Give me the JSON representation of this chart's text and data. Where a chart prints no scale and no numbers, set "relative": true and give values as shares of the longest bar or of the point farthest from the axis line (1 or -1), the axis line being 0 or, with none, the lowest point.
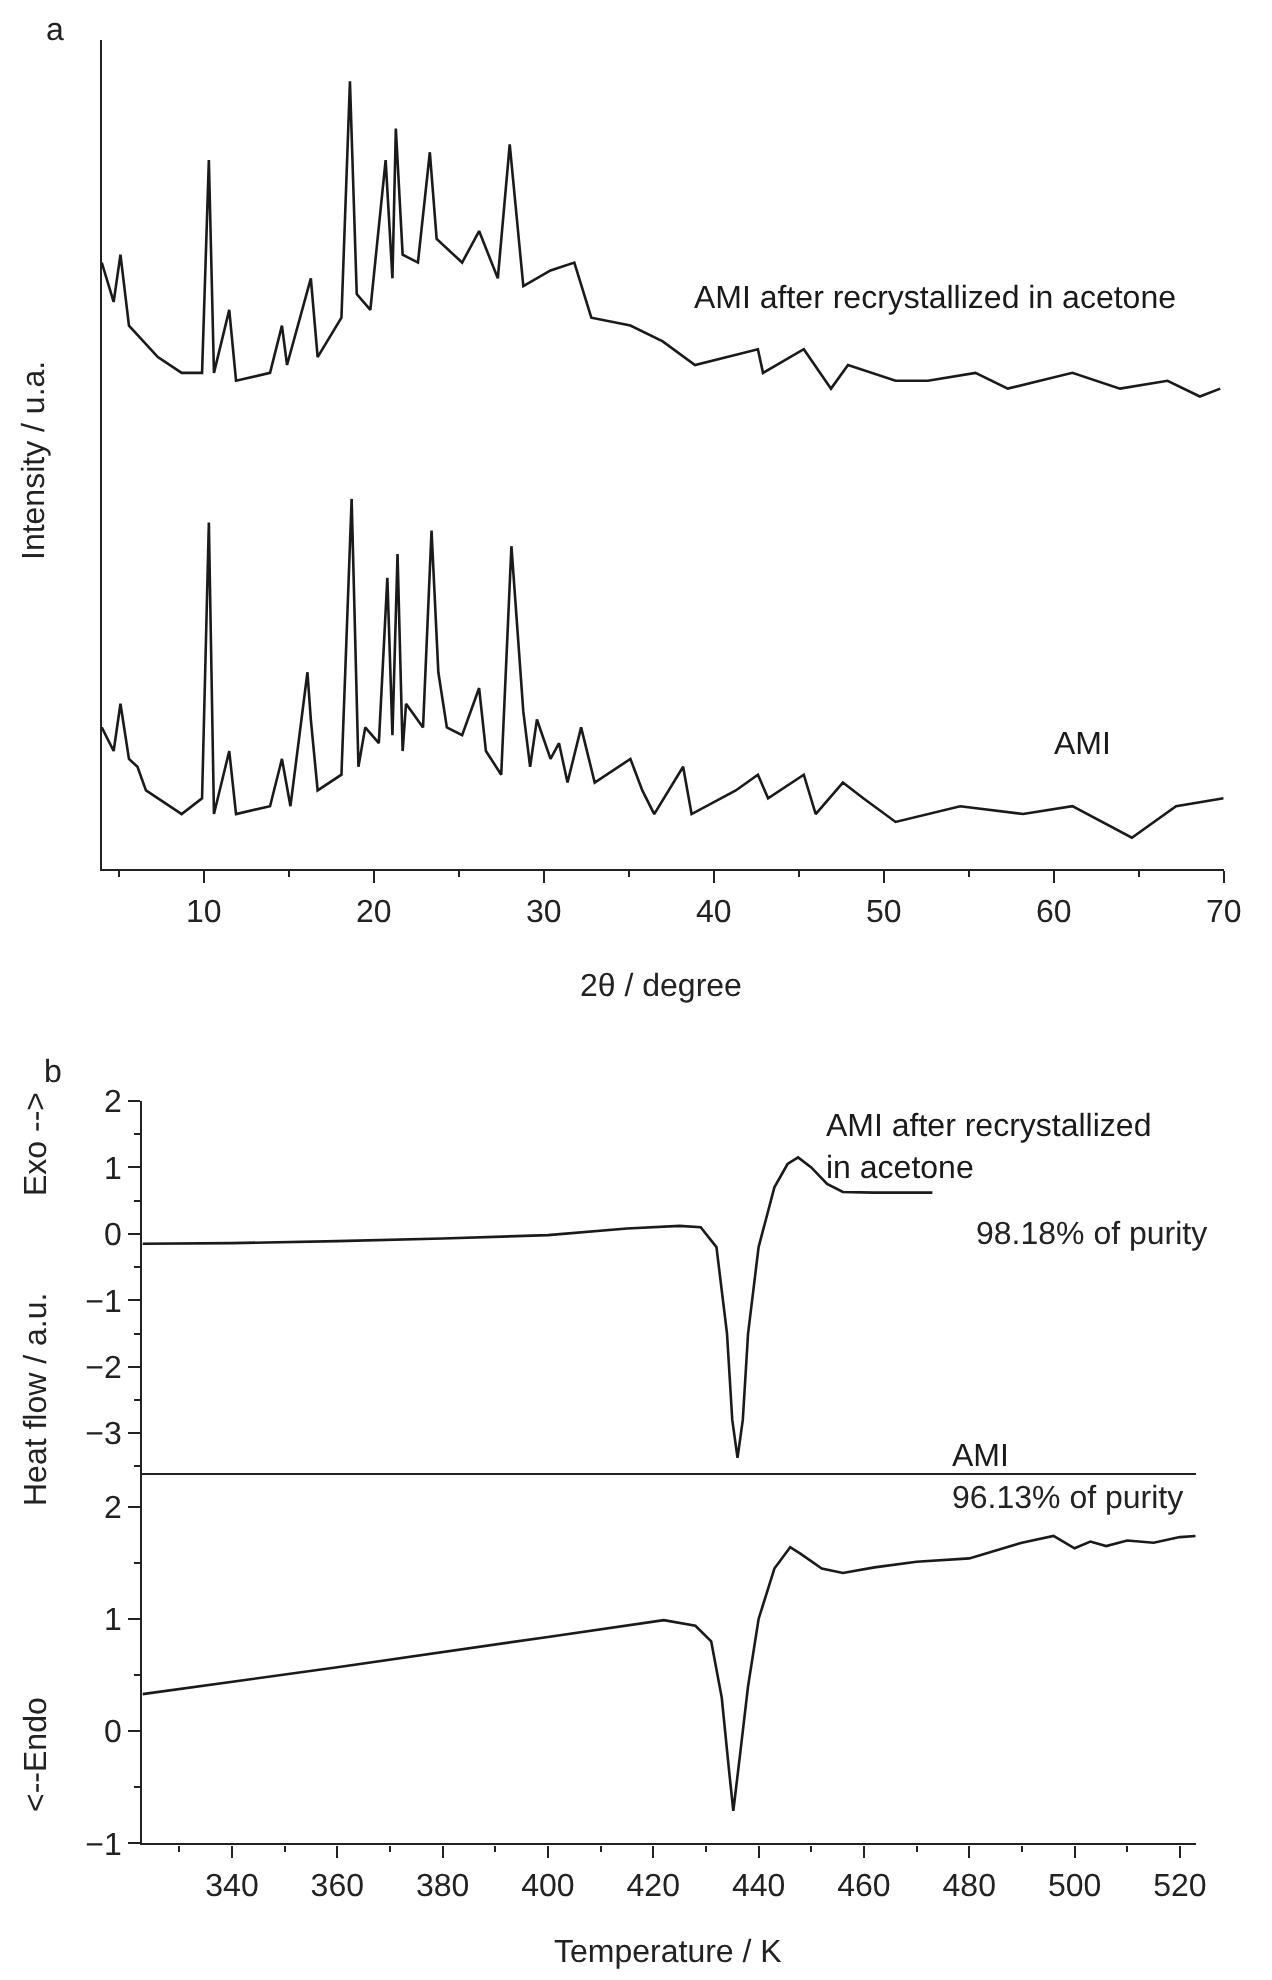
{
  "chart_data": [
    {
      "type": "line",
      "title": "a",
      "xlabel": "2θ / degree",
      "ylabel": "Intensity / u.a.",
      "relative": true,
      "xlim": [
        4,
        70
      ],
      "xticks": [
        10,
        20,
        30,
        40,
        50,
        60,
        70
      ],
      "series": [
        {
          "name": "AMI after recrystallized in acetone",
          "color": "#1a1a1a",
          "x": [
            4.0,
            4.7,
            5.1,
            5.6,
            7.3,
            8.7,
            9.9,
            10.3,
            10.6,
            11.5,
            11.9,
            13.9,
            14.6,
            14.9,
            16.3,
            16.7,
            18.1,
            18.6,
            19.0,
            19.8,
            20.7,
            21.1,
            21.3,
            21.7,
            22.6,
            23.3,
            23.7,
            25.2,
            26.2,
            27.3,
            28.0,
            28.8,
            30.4,
            31.8,
            32.8,
            35.1,
            37.0,
            38.9,
            42.6,
            42.9,
            45.3,
            46.9,
            47.9,
            50.7,
            52.6,
            55.4,
            57.3,
            61.1,
            63.9,
            66.7,
            68.6,
            69.8
          ],
          "values": [
            0.77,
            0.72,
            0.78,
            0.69,
            0.65,
            0.63,
            0.63,
            0.9,
            0.63,
            0.71,
            0.62,
            0.63,
            0.69,
            0.64,
            0.75,
            0.65,
            0.7,
            1.0,
            0.73,
            0.71,
            0.9,
            0.75,
            0.94,
            0.78,
            0.77,
            0.91,
            0.8,
            0.77,
            0.81,
            0.75,
            0.92,
            0.74,
            0.76,
            0.77,
            0.7,
            0.69,
            0.67,
            0.64,
            0.66,
            0.63,
            0.66,
            0.61,
            0.64,
            0.62,
            0.62,
            0.63,
            0.61,
            0.63,
            0.61,
            0.62,
            0.6,
            0.61
          ]
        },
        {
          "name": "AMI",
          "color": "#1a1a1a",
          "x": [
            4.0,
            4.7,
            5.1,
            5.6,
            6.1,
            6.6,
            8.7,
            9.9,
            10.3,
            10.6,
            11.5,
            11.9,
            13.9,
            14.6,
            15.1,
            16.1,
            16.3,
            16.7,
            18.1,
            18.7,
            19.1,
            19.5,
            20.3,
            20.8,
            21.1,
            21.4,
            21.7,
            21.9,
            22.9,
            23.4,
            23.8,
            24.3,
            25.2,
            26.2,
            26.6,
            27.5,
            28.1,
            28.8,
            29.2,
            29.6,
            30.4,
            30.9,
            31.4,
            32.2,
            33.0,
            35.1,
            35.8,
            36.5,
            38.2,
            38.7,
            41.3,
            42.6,
            43.2,
            45.3,
            46.0,
            47.6,
            48.8,
            50.7,
            54.5,
            58.2,
            61.1,
            64.6,
            67.2,
            70.0
          ],
          "values": [
            0.18,
            0.15,
            0.21,
            0.14,
            0.13,
            0.1,
            0.07,
            0.09,
            0.44,
            0.07,
            0.15,
            0.07,
            0.08,
            0.14,
            0.08,
            0.25,
            0.19,
            0.1,
            0.12,
            0.47,
            0.13,
            0.18,
            0.16,
            0.37,
            0.17,
            0.4,
            0.15,
            0.21,
            0.18,
            0.43,
            0.25,
            0.18,
            0.17,
            0.23,
            0.15,
            0.12,
            0.41,
            0.2,
            0.13,
            0.19,
            0.14,
            0.16,
            0.11,
            0.18,
            0.11,
            0.14,
            0.1,
            0.07,
            0.13,
            0.07,
            0.1,
            0.12,
            0.09,
            0.12,
            0.07,
            0.11,
            0.09,
            0.06,
            0.08,
            0.07,
            0.08,
            0.04,
            0.08,
            0.09
          ]
        }
      ]
    },
    {
      "type": "line",
      "title": "b",
      "xlim": [
        323,
        523
      ],
      "xticks": [
        340,
        360,
        380,
        400,
        420,
        440,
        460,
        480,
        500,
        520
      ],
      "ylim": [
        -3.6,
        2
      ],
      "yticks": [
        -3,
        -2,
        -1,
        0,
        1,
        2
      ],
      "tick_labels": "y",
      "annotations": [
        "Exo -->",
        "98.18% of purity"
      ],
      "series": [
        {
          "name": "AMI after recrystallized in acetone",
          "color": "#1a1a1a",
          "x": [
            323,
            340,
            360,
            380,
            400,
            415,
            425,
            429,
            432,
            434,
            435,
            436,
            437,
            438,
            440,
            443,
            445.5,
            447.5,
            450,
            453,
            456,
            462,
            473
          ],
          "values": [
            -0.15,
            -0.14,
            -0.11,
            -0.07,
            -0.02,
            0.08,
            0.12,
            0.1,
            -0.2,
            -1.5,
            -2.8,
            -3.37,
            -2.8,
            -1.5,
            -0.2,
            0.7,
            1.05,
            1.15,
            1.0,
            0.75,
            0.63,
            0.62,
            0.62
          ]
        }
      ]
    },
    {
      "type": "line",
      "xlabel": "Temperature / K",
      "ylabel": "Heat flow / a.u.",
      "xlim": [
        323,
        523
      ],
      "xticks": [
        340,
        360,
        380,
        400,
        420,
        440,
        460,
        480,
        500,
        520
      ],
      "ylim": [
        -1,
        2.3
      ],
      "yticks": [
        -1,
        0,
        1,
        2
      ],
      "annotations": [
        "<--Endo",
        "96.13% of purity"
      ],
      "series": [
        {
          "name": "AMI",
          "color": "#1a1a1a",
          "x": [
            323,
            360,
            400,
            422,
            428,
            431,
            433,
            434.5,
            435.2,
            436.5,
            438,
            440,
            443,
            446,
            448,
            452,
            456,
            462,
            470,
            480,
            490,
            496,
            500,
            503,
            506,
            510,
            515,
            520,
            523
          ],
          "values": [
            0.33,
            0.57,
            0.84,
            0.99,
            0.94,
            0.8,
            0.3,
            -0.4,
            -0.71,
            -0.2,
            0.4,
            1.0,
            1.45,
            1.64,
            1.58,
            1.45,
            1.41,
            1.46,
            1.51,
            1.54,
            1.68,
            1.74,
            1.63,
            1.69,
            1.65,
            1.7,
            1.68,
            1.73,
            1.74
          ]
        }
      ]
    }
  ]
}
